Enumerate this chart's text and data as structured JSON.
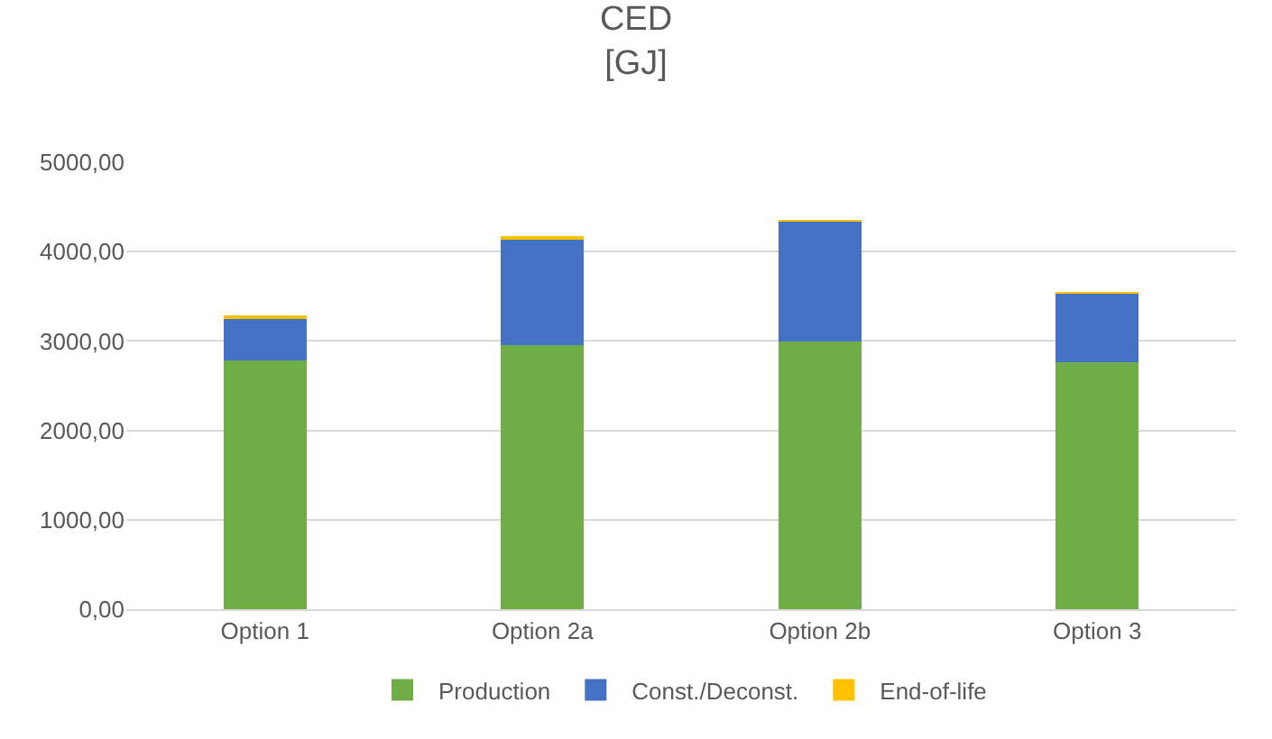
{
  "chart_data": {
    "type": "bar",
    "title": "CED\n[GJ]",
    "stacked": true,
    "categories": [
      "Option 1",
      "Option 2a",
      "Option 2b",
      "Option 3"
    ],
    "series": [
      {
        "name": "Production",
        "color": "#70ad47",
        "values": [
          2780,
          2950,
          2990,
          2760
        ]
      },
      {
        "name": "Const./Deconst.",
        "color": "#4472c4",
        "values": [
          480,
          1200,
          1350,
          770
        ]
      },
      {
        "name": "End-of-life",
        "color": "#ffc000",
        "values": [
          10,
          20,
          10,
          10
        ]
      }
    ],
    "ylim": [
      0,
      5000
    ],
    "yticks": [
      {
        "value": 0,
        "label": "0,00"
      },
      {
        "value": 1000,
        "label": "1000,00"
      },
      {
        "value": 2000,
        "label": "2000,00"
      },
      {
        "value": 3000,
        "label": "3000,00"
      },
      {
        "value": 4000,
        "label": "4000,00"
      },
      {
        "value": 5000,
        "label": "5000,00"
      }
    ],
    "grid": "y",
    "legend": "bottom"
  }
}
